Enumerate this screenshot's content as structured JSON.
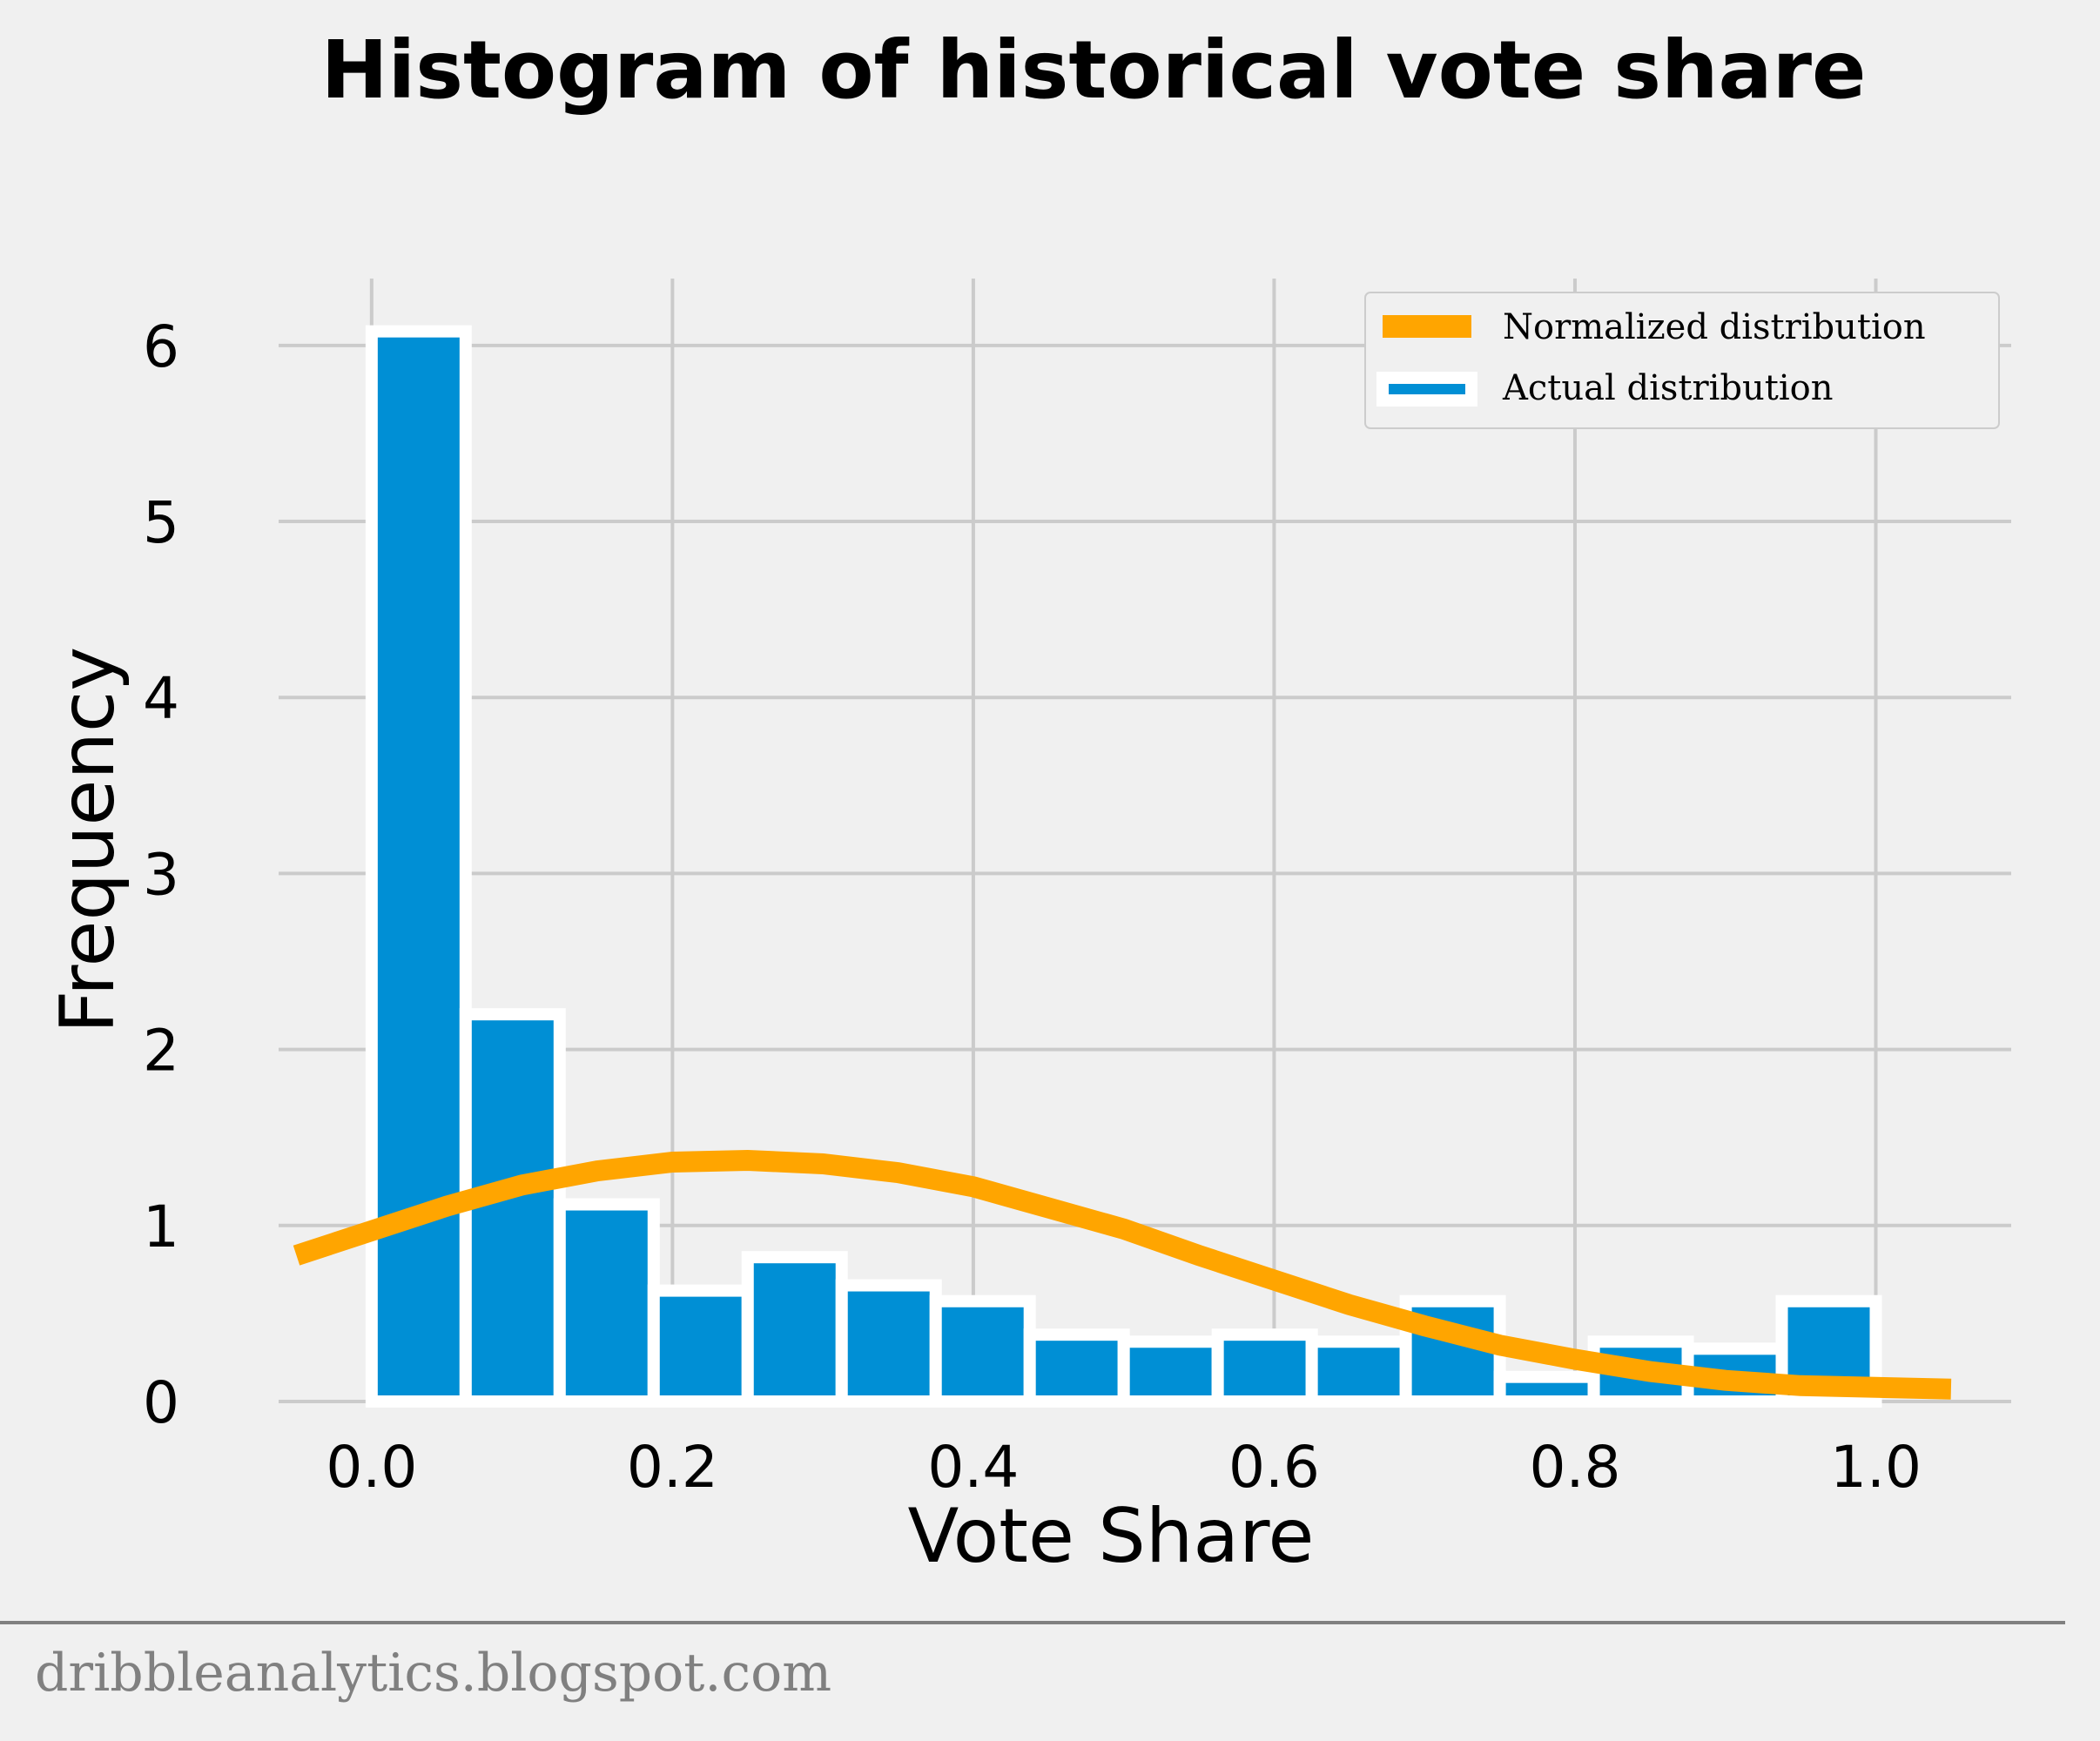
{
  "chart_data": {
    "type": "bar",
    "title": "Histogram of historical vote share",
    "xlabel": "Vote Share",
    "ylabel": "Frequency",
    "xlim": [
      -0.085,
      1.09
    ],
    "ylim": [
      0,
      6.38
    ],
    "xticks": [
      0.0,
      0.2,
      0.4,
      0.6,
      0.8,
      1.0
    ],
    "xtick_labels": [
      "0.0",
      "0.2",
      "0.4",
      "0.6",
      "0.8",
      "1.0"
    ],
    "yticks": [
      0,
      1,
      2,
      3,
      4,
      5,
      6
    ],
    "ytick_labels": [
      "0",
      "1",
      "2",
      "3",
      "4",
      "5",
      "6"
    ],
    "grid": true,
    "legend_position": "top-right",
    "series": [
      {
        "name": "Actual distribution",
        "kind": "histogram",
        "color": "#008fd5",
        "edge_color": "#ffffff",
        "bin_width": 0.0625,
        "bin_left_edges": [
          0.0,
          0.0625,
          0.125,
          0.1875,
          0.25,
          0.3125,
          0.375,
          0.4375,
          0.5,
          0.5625,
          0.625,
          0.6875,
          0.75,
          0.8125,
          0.875,
          0.9375
        ],
        "values": [
          6.08,
          2.2,
          1.12,
          0.63,
          0.82,
          0.66,
          0.57,
          0.38,
          0.34,
          0.38,
          0.34,
          0.57,
          0.14,
          0.34,
          0.3,
          0.57
        ]
      },
      {
        "name": "Normalized distribution",
        "kind": "line",
        "color": "#ffa500",
        "x": [
          -0.05,
          0.0,
          0.05,
          0.1,
          0.15,
          0.2,
          0.25,
          0.3,
          0.35,
          0.4,
          0.45,
          0.5,
          0.55,
          0.6,
          0.65,
          0.7,
          0.75,
          0.8,
          0.85,
          0.9,
          0.95,
          1.0,
          1.05
        ],
        "y": [
          0.83,
          0.97,
          1.11,
          1.23,
          1.31,
          1.36,
          1.37,
          1.35,
          1.3,
          1.22,
          1.1,
          0.98,
          0.83,
          0.69,
          0.55,
          0.43,
          0.32,
          0.24,
          0.17,
          0.12,
          0.09,
          0.08,
          0.07
        ]
      }
    ]
  },
  "footer": {
    "source": "dribbleanalytics.blogspot.com"
  }
}
